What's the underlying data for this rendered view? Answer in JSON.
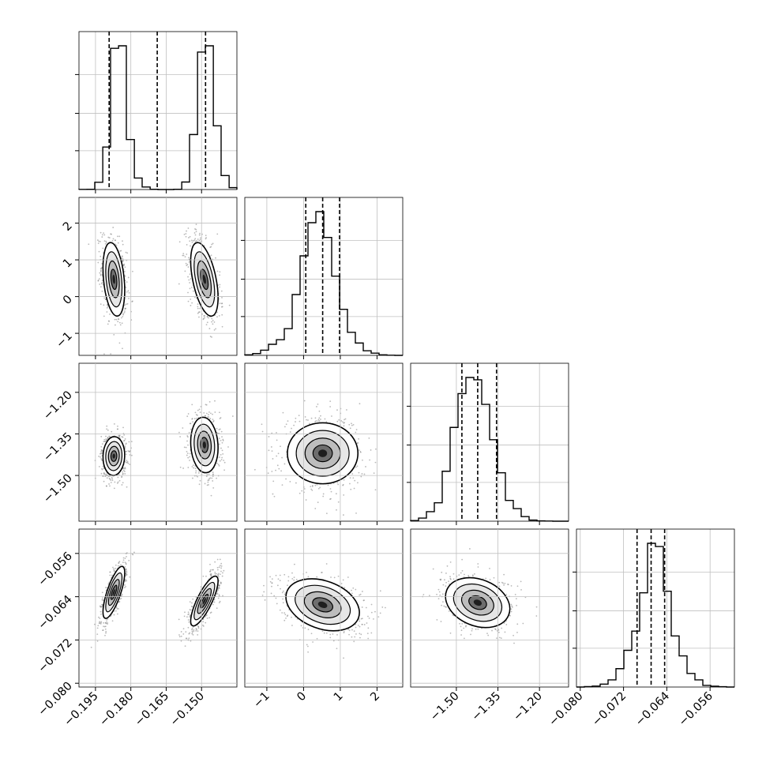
{
  "chart_data": {
    "type": "corner",
    "title": "",
    "n_params": 4,
    "grid": true,
    "quantile_lines": "dashed",
    "colors": {
      "frame": "#000000",
      "grid": "#c0c0c0",
      "contour": "#000000",
      "points": "#808080",
      "background": "#ffffff"
    },
    "params": [
      {
        "label": "",
        "range": [
          -0.202,
          -0.135
        ],
        "ticks": [
          -0.195,
          -0.18,
          -0.165,
          -0.15
        ],
        "tick_labels": [
          "−0.195",
          "−0.180",
          "−0.165",
          "−0.150"
        ],
        "quantiles": [
          -0.1892,
          -0.1688,
          -0.1483
        ],
        "hist": {
          "bin_edges": [
            -0.202,
            -0.1986,
            -0.1953,
            -0.1919,
            -0.1886,
            -0.1852,
            -0.1819,
            -0.1785,
            -0.1752,
            -0.1718,
            -0.1685,
            -0.1651,
            -0.1618,
            -0.1584,
            -0.1551,
            -0.1517,
            -0.1484,
            -0.145,
            -0.1417,
            -0.1383,
            -0.135
          ],
          "counts": [
            1,
            2,
            58,
            340,
            1130,
            1150,
            400,
            92,
            20,
            2,
            0,
            0,
            2,
            60,
            440,
            1100,
            1150,
            510,
            112,
            15
          ]
        },
        "modes": [
          {
            "center": -0.1872,
            "sigma": 0.0023
          },
          {
            "center": -0.1488,
            "sigma": 0.0029
          }
        ]
      },
      {
        "label": "",
        "range": [
          -1.6,
          2.7
        ],
        "ticks": [
          -1,
          0,
          1,
          2
        ],
        "tick_labels": [
          "−1",
          "0",
          "1",
          "2"
        ],
        "quantiles": [
          0.06,
          0.52,
          0.98
        ],
        "hist": {
          "bin_edges": [
            -1.6,
            -1.385,
            -1.17,
            -0.955,
            -0.74,
            -0.525,
            -0.31,
            -0.095,
            0.12,
            0.335,
            0.55,
            0.765,
            0.98,
            1.195,
            1.41,
            1.625,
            1.84,
            2.055,
            2.27,
            2.485,
            2.7
          ],
          "counts": [
            3,
            10,
            28,
            60,
            85,
            145,
            330,
            540,
            720,
            780,
            640,
            430,
            250,
            125,
            67,
            25,
            12,
            3,
            1,
            0
          ]
        }
      },
      {
        "label": "",
        "range": [
          -1.665,
          -1.095
        ],
        "ticks": [
          -1.5,
          -1.35,
          -1.2
        ],
        "tick_labels": [
          "−1.50",
          "−1.35",
          "−1.20"
        ],
        "quantiles": [
          -1.48,
          -1.423,
          -1.355
        ],
        "hist": {
          "bin_edges": [
            -1.665,
            -1.6365,
            -1.608,
            -1.5795,
            -1.551,
            -1.5225,
            -1.494,
            -1.4655,
            -1.437,
            -1.4085,
            -1.38,
            -1.3515,
            -1.323,
            -1.2945,
            -1.266,
            -1.2375,
            -1.209,
            -1.1805,
            -1.152,
            -1.1235,
            -1.095
          ],
          "counts": [
            4,
            20,
            62,
            120,
            325,
            610,
            830,
            935,
            920,
            760,
            530,
            315,
            135,
            82,
            30,
            7,
            2,
            1,
            0,
            0
          ]
        }
      },
      {
        "label": "",
        "range": [
          -0.0807,
          -0.0515
        ],
        "ticks": [
          -0.08,
          -0.072,
          -0.064,
          -0.056
        ],
        "tick_labels": [
          "−0.080",
          "−0.072",
          "−0.064",
          "−0.056"
        ],
        "quantiles": [
          -0.0695,
          -0.0669,
          -0.0644
        ],
        "hist": {
          "bin_edges": [
            -0.0807,
            -0.07924,
            -0.07778,
            -0.07632,
            -0.07486,
            -0.0734,
            -0.07194,
            -0.07048,
            -0.06902,
            -0.06756,
            -0.0661,
            -0.06464,
            -0.06318,
            -0.06172,
            -0.06026,
            -0.0588,
            -0.05734,
            -0.05588,
            -0.05442,
            -0.05296,
            -0.0515
          ],
          "counts": [
            0,
            3,
            6,
            18,
            45,
            115,
            230,
            350,
            590,
            900,
            880,
            600,
            320,
            195,
            85,
            45,
            10,
            5,
            2,
            0
          ]
        }
      }
    ],
    "pairs": [
      {
        "row": 1,
        "col": 0,
        "blobs": [
          {
            "center": [
              -0.1872,
              0.47
            ],
            "sigma": [
              0.0023,
              0.5
            ],
            "corr": -0.3
          },
          {
            "center": [
              -0.1488,
              0.47
            ],
            "sigma": [
              0.0029,
              0.5
            ],
            "corr": -0.5
          }
        ]
      },
      {
        "row": 2,
        "col": 0,
        "blobs": [
          {
            "center": [
              -0.1872,
              -1.43
            ],
            "sigma": [
              0.0023,
              0.035
            ],
            "corr": 0.05
          },
          {
            "center": [
              -0.1488,
              -1.39
            ],
            "sigma": [
              0.0029,
              0.05
            ],
            "corr": -0.1
          }
        ]
      },
      {
        "row": 2,
        "col": 1,
        "blobs": [
          {
            "center": [
              0.52,
              -1.42
            ],
            "sigma": [
              0.48,
              0.055
            ],
            "corr": 0.0
          }
        ]
      },
      {
        "row": 3,
        "col": 0,
        "blobs": [
          {
            "center": [
              -0.1872,
              -0.0632
            ],
            "sigma": [
              0.0023,
              0.0024
            ],
            "corr": 0.75
          },
          {
            "center": [
              -0.1488,
              -0.0648
            ],
            "sigma": [
              0.0029,
              0.0023
            ],
            "corr": 0.8
          }
        ]
      },
      {
        "row": 3,
        "col": 1,
        "blobs": [
          {
            "center": [
              0.52,
              -0.0655
            ],
            "sigma": [
              0.5,
              0.0024
            ],
            "corr": -0.3
          }
        ]
      },
      {
        "row": 3,
        "col": 2,
        "blobs": [
          {
            "center": [
              -1.423,
              -0.0651
            ],
            "sigma": [
              0.058,
              0.0023
            ],
            "corr": -0.25
          }
        ]
      }
    ]
  }
}
